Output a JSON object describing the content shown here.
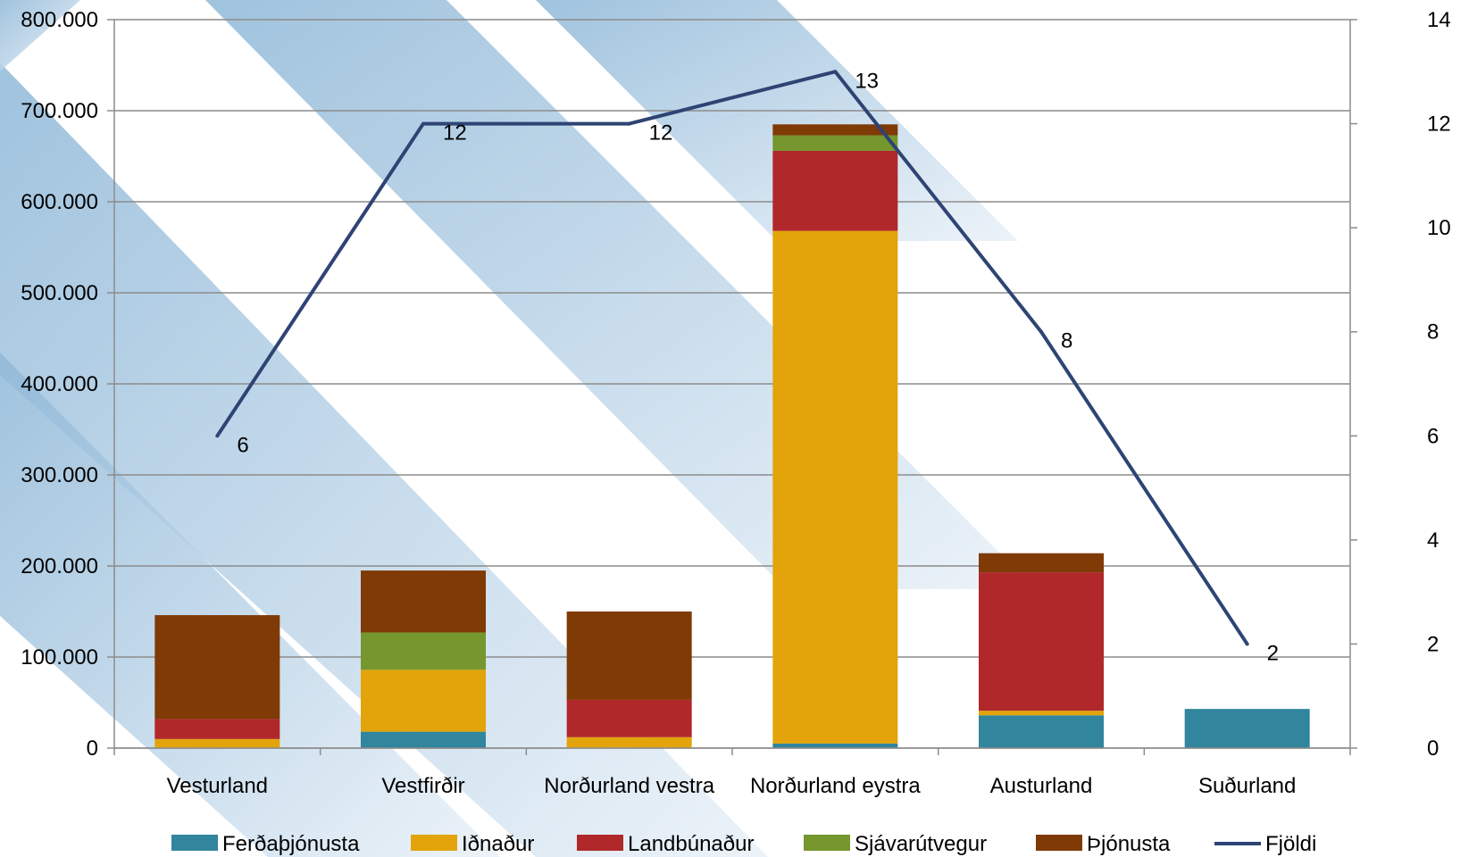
{
  "chart_data": {
    "type": "bar",
    "stacked": true,
    "categories": [
      "Vesturland",
      "Vestfirðir",
      "Norðurland vestra",
      "Norðurland eystra",
      "Austurland",
      "Suðurland"
    ],
    "series": [
      {
        "name": "Ferðaþjónusta",
        "color": "#31859c",
        "values": [
          0,
          18000,
          0,
          5000,
          36000,
          43000
        ]
      },
      {
        "name": "Iðnaður",
        "color": "#e2a40a",
        "values": [
          10000,
          68000,
          12000,
          563000,
          5000,
          0
        ]
      },
      {
        "name": "Landbúnaður",
        "color": "#b0282a",
        "values": [
          22000,
          0,
          41000,
          88000,
          152000,
          0
        ]
      },
      {
        "name": "Sjávarútvegur",
        "color": "#76962e",
        "values": [
          0,
          41000,
          0,
          17000,
          0,
          0
        ]
      },
      {
        "name": "Þjónusta",
        "color": "#7f3a06",
        "values": [
          114000,
          68000,
          97000,
          12000,
          21000,
          0
        ]
      }
    ],
    "line_series": {
      "name": "Fjöldi",
      "color": "#2e4474",
      "axis": "right",
      "values": [
        6,
        12,
        12,
        13,
        8,
        2
      ],
      "labels": [
        "6",
        "12",
        "12",
        "13",
        "8",
        "2"
      ]
    },
    "y_left": {
      "range": [
        0,
        800000
      ],
      "ticks": [
        0,
        100000,
        200000,
        300000,
        400000,
        500000,
        600000,
        700000,
        800000
      ],
      "tick_labels": [
        "0",
        "100.000",
        "200.000",
        "300.000",
        "400.000",
        "500.000",
        "600.000",
        "700.000",
        "800.000"
      ]
    },
    "y_right": {
      "range": [
        0,
        14
      ],
      "ticks": [
        0,
        2,
        4,
        6,
        8,
        10,
        12,
        14
      ],
      "tick_labels": [
        "0",
        "2",
        "4",
        "6",
        "8",
        "10",
        "12",
        "14"
      ]
    },
    "grid": true,
    "legend": "bottom",
    "background_decoration": "diagonal light-blue stripes"
  }
}
